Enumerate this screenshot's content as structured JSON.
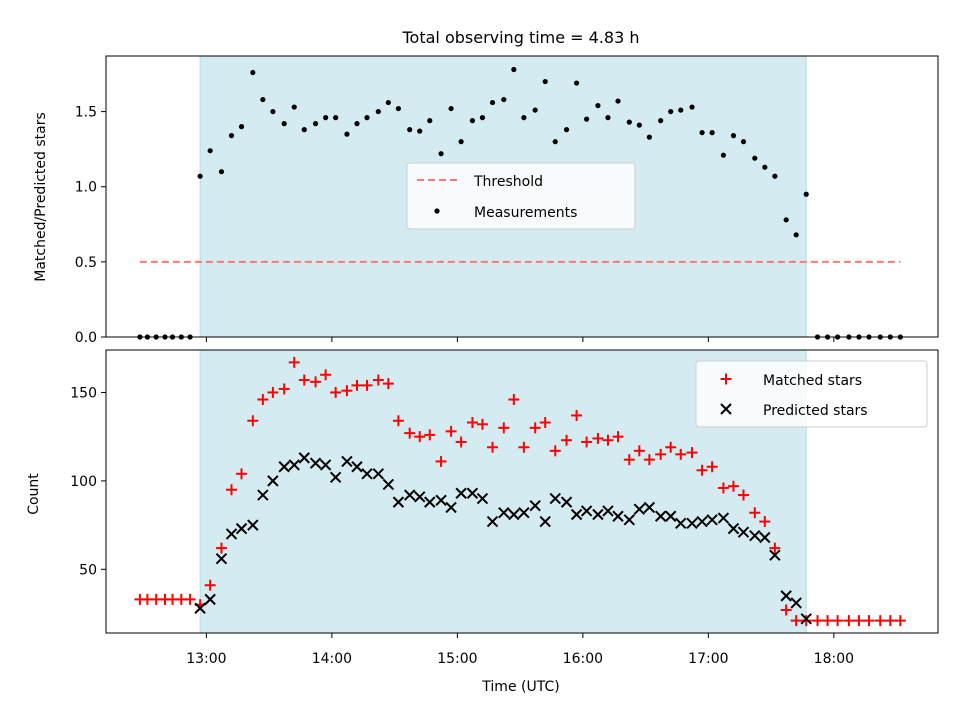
{
  "figure_title": "Total observing time = 4.83 h",
  "colors": {
    "shade": "#d4ebf1",
    "shade_edge": "#b8dde6",
    "threshold": "#ff7777",
    "measurement": "#000000",
    "matched": "#ff0000",
    "predicted": "#000000"
  },
  "chart_data": [
    {
      "type": "scatter",
      "ylabel": "Matched/Predicted stars",
      "xlim": [
        12.2,
        18.83
      ],
      "ylim": [
        0,
        1.87
      ],
      "yticks": [
        0.0,
        0.5,
        1.0,
        1.5
      ],
      "ytick_labels": [
        "0.0",
        "0.5",
        "1.0",
        "1.5"
      ],
      "xticks": [
        13,
        14,
        15,
        16,
        17,
        18
      ],
      "grid": false,
      "legend": {
        "position": "center",
        "entries": [
          "Threshold",
          "Measurements"
        ]
      },
      "observing_window": [
        12.95,
        17.78
      ],
      "threshold": {
        "name": "Threshold",
        "y": 0.5,
        "x_range": [
          12.47,
          18.53
        ]
      },
      "series": [
        {
          "name": "Measurements",
          "x": [
            12.47,
            12.53,
            12.6,
            12.67,
            12.73,
            12.8,
            12.87,
            12.95,
            13.03,
            13.12,
            13.2,
            13.28,
            13.37,
            13.45,
            13.53,
            13.62,
            13.7,
            13.78,
            13.87,
            13.95,
            14.03,
            14.12,
            14.2,
            14.28,
            14.37,
            14.45,
            14.53,
            14.62,
            14.7,
            14.78,
            14.87,
            14.95,
            15.03,
            15.12,
            15.2,
            15.28,
            15.37,
            15.45,
            15.53,
            15.62,
            15.7,
            15.78,
            15.87,
            15.95,
            16.03,
            16.12,
            16.2,
            16.28,
            16.37,
            16.45,
            16.53,
            16.62,
            16.7,
            16.78,
            16.87,
            16.95,
            17.03,
            17.12,
            17.2,
            17.28,
            17.37,
            17.45,
            17.53,
            17.62,
            17.7,
            17.78,
            17.87,
            17.95,
            18.03,
            18.12,
            18.2,
            18.28,
            18.37,
            18.45,
            18.53
          ],
          "y": [
            0,
            0,
            0,
            0,
            0,
            0,
            0,
            1.07,
            1.24,
            1.1,
            1.34,
            1.4,
            1.76,
            1.58,
            1.5,
            1.42,
            1.53,
            1.38,
            1.42,
            1.46,
            1.46,
            1.35,
            1.42,
            1.46,
            1.5,
            1.56,
            1.52,
            1.38,
            1.37,
            1.44,
            1.22,
            1.52,
            1.3,
            1.44,
            1.46,
            1.56,
            1.58,
            1.78,
            1.46,
            1.51,
            1.7,
            1.3,
            1.38,
            1.69,
            1.45,
            1.54,
            1.46,
            1.57,
            1.43,
            1.41,
            1.33,
            1.44,
            1.5,
            1.51,
            1.53,
            1.36,
            1.36,
            1.21,
            1.34,
            1.3,
            1.19,
            1.13,
            1.07,
            0.78,
            0.68,
            0.95,
            0,
            0,
            0,
            0,
            0,
            0,
            0,
            0,
            0
          ]
        }
      ]
    },
    {
      "type": "scatter",
      "title": "",
      "xlabel": "Time (UTC)",
      "ylabel": "Count",
      "xlim": [
        12.2,
        18.83
      ],
      "ylim": [
        14,
        174
      ],
      "yticks": [
        50,
        100,
        150
      ],
      "ytick_labels": [
        "50",
        "100",
        "150"
      ],
      "xticks": [
        13,
        14,
        15,
        16,
        17,
        18
      ],
      "xtick_labels": [
        "13:00",
        "14:00",
        "15:00",
        "16:00",
        "17:00",
        "18:00"
      ],
      "grid": false,
      "legend": {
        "position": "top-right",
        "entries": [
          "Matched stars",
          "Predicted stars"
        ]
      },
      "observing_window": [
        12.95,
        17.78
      ],
      "series": [
        {
          "name": "Matched stars",
          "marker": "+",
          "x": [
            12.47,
            12.53,
            12.6,
            12.67,
            12.73,
            12.8,
            12.87,
            12.95,
            13.03,
            13.12,
            13.2,
            13.28,
            13.37,
            13.45,
            13.53,
            13.62,
            13.7,
            13.78,
            13.87,
            13.95,
            14.03,
            14.12,
            14.2,
            14.28,
            14.37,
            14.45,
            14.53,
            14.62,
            14.7,
            14.78,
            14.87,
            14.95,
            15.03,
            15.12,
            15.2,
            15.28,
            15.37,
            15.45,
            15.53,
            15.62,
            15.7,
            15.78,
            15.87,
            15.95,
            16.03,
            16.12,
            16.2,
            16.28,
            16.37,
            16.45,
            16.53,
            16.62,
            16.7,
            16.78,
            16.87,
            16.95,
            17.03,
            17.12,
            17.2,
            17.28,
            17.37,
            17.45,
            17.53,
            17.62,
            17.7,
            17.78,
            17.87,
            17.95,
            18.03,
            18.12,
            18.2,
            18.28,
            18.37,
            18.45,
            18.53
          ],
          "y": [
            33,
            33,
            33,
            33,
            33,
            33,
            33,
            30,
            41,
            62,
            95,
            104,
            134,
            146,
            150,
            152,
            167,
            157,
            156,
            160,
            150,
            151,
            154,
            154,
            157,
            155,
            134,
            127,
            125,
            126,
            111,
            128,
            122,
            133,
            132,
            119,
            130,
            146,
            119,
            130,
            133,
            117,
            123,
            137,
            122,
            124,
            123,
            125,
            112,
            117,
            112,
            115,
            119,
            115,
            116,
            106,
            108,
            96,
            97,
            92,
            82,
            77,
            62,
            27,
            21,
            21,
            21,
            21,
            21,
            21,
            21,
            21,
            21,
            21,
            21
          ]
        },
        {
          "name": "Predicted stars",
          "marker": "x",
          "x": [
            12.95,
            13.03,
            13.12,
            13.2,
            13.28,
            13.37,
            13.45,
            13.53,
            13.62,
            13.7,
            13.78,
            13.87,
            13.95,
            14.03,
            14.12,
            14.2,
            14.28,
            14.37,
            14.45,
            14.53,
            14.62,
            14.7,
            14.78,
            14.87,
            14.95,
            15.03,
            15.12,
            15.2,
            15.28,
            15.37,
            15.45,
            15.53,
            15.62,
            15.7,
            15.78,
            15.87,
            15.95,
            16.03,
            16.12,
            16.2,
            16.28,
            16.37,
            16.45,
            16.53,
            16.62,
            16.7,
            16.78,
            16.87,
            16.95,
            17.03,
            17.12,
            17.2,
            17.28,
            17.37,
            17.45,
            17.53,
            17.62,
            17.7,
            17.78
          ],
          "y": [
            28,
            33,
            56,
            70,
            73,
            75,
            92,
            100,
            108,
            109,
            113,
            110,
            109,
            102,
            111,
            108,
            104,
            104,
            98,
            88,
            92,
            91,
            88,
            89,
            85,
            93,
            93,
            90,
            77,
            82,
            81,
            82,
            86,
            77,
            90,
            88,
            81,
            83,
            81,
            83,
            80,
            78,
            84,
            85,
            80,
            80,
            76,
            76,
            77,
            78,
            79,
            73,
            71,
            69,
            68,
            58,
            35,
            31,
            22
          ]
        }
      ]
    }
  ]
}
